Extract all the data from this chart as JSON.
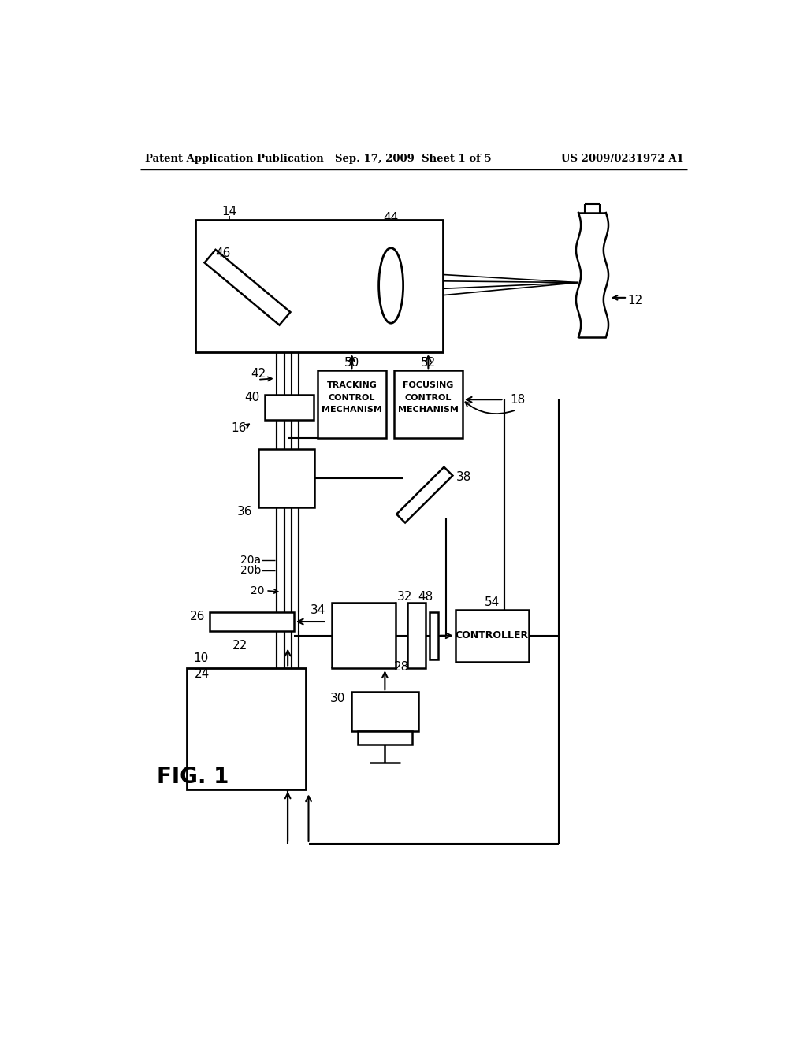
{
  "bg_color": "#ffffff",
  "header_left": "Patent Application Publication",
  "header_center": "Sep. 17, 2009  Sheet 1 of 5",
  "header_right": "US 2009/0231972 A1",
  "fig_label": "FIG. 1",
  "system_label": "10"
}
